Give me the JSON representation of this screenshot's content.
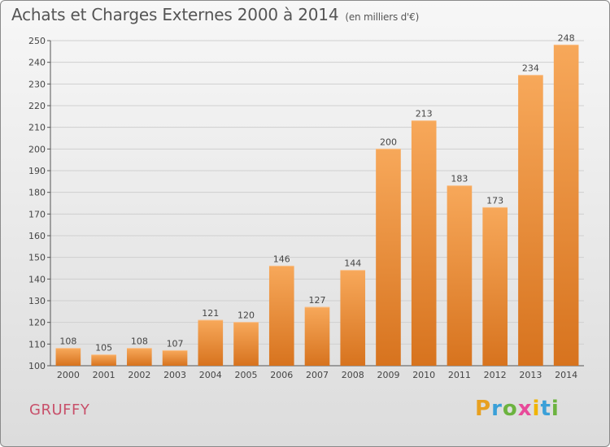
{
  "title": "Achats et Charges Externes 2000 à 2014",
  "units": "(en milliers d'€)",
  "commune": "GRUFFY",
  "logo": {
    "letters": [
      "P",
      "r",
      "o",
      "x",
      "i",
      "t",
      "i"
    ],
    "colors": [
      "#e8a020",
      "#3aa0d8",
      "#6cb33f",
      "#e84a9a",
      "#f0b400",
      "#3aa0d8",
      "#6cb33f"
    ]
  },
  "colors": {
    "bar_top": "#f7a85a",
    "bar_bottom": "#d7731e",
    "grid": "#cfcfcf",
    "text": "#444444"
  },
  "chart_data": {
    "type": "bar",
    "categories": [
      "2000",
      "2001",
      "2002",
      "2003",
      "2004",
      "2005",
      "2006",
      "2007",
      "2008",
      "2009",
      "2010",
      "2011",
      "2012",
      "2013",
      "2014"
    ],
    "values": [
      108,
      105,
      108,
      107,
      121,
      120,
      146,
      127,
      144,
      200,
      213,
      183,
      173,
      234,
      248
    ],
    "ylim": [
      100,
      250
    ],
    "yticks": [
      100,
      110,
      120,
      130,
      140,
      150,
      160,
      170,
      180,
      190,
      200,
      210,
      220,
      230,
      240,
      250
    ],
    "grid": true
  }
}
